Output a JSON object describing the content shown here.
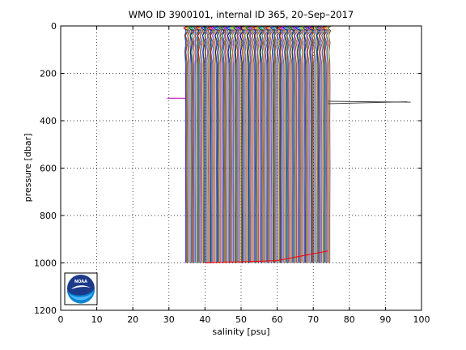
{
  "chart_data": {
    "type": "line",
    "title": "WMO ID 3900101, internal ID 365, 20–Sep–2017",
    "xlabel": "salinity [psu]",
    "ylabel": "pressure [dbar]",
    "xlim": [
      0,
      100
    ],
    "ylim": [
      0,
      1200
    ],
    "y_reversed": true,
    "grid": true,
    "x_ticks": [
      0,
      10,
      20,
      30,
      40,
      50,
      60,
      70,
      80,
      90,
      100
    ],
    "y_ticks": [
      0,
      200,
      400,
      600,
      800,
      1000,
      1200
    ],
    "x_tick_labels": [
      "0",
      "10",
      "20",
      "30",
      "40",
      "50",
      "60",
      "70",
      "80",
      "90",
      "100"
    ],
    "y_tick_labels": [
      "0",
      "200",
      "400",
      "600",
      "800",
      "1000",
      "1200"
    ],
    "profiles": {
      "description_note": "",
      "first_offset_salinity": 34.6,
      "offset_step": 0.25,
      "count": 161,
      "surface_pressure": 0,
      "bottom_pressure": 1000,
      "colors": [
        "#0000ff",
        "#008000",
        "#ff0000",
        "#00bfbf",
        "#bf00bf",
        "#bfbf00",
        "#404040"
      ]
    },
    "annotations": [
      {
        "name": "spike-left",
        "points": [
          [
            29.5,
            305
          ],
          [
            34.8,
            305
          ]
        ],
        "color": "#bf00bf"
      },
      {
        "name": "spike-right-1",
        "points": [
          [
            74,
            318
          ],
          [
            97,
            322
          ]
        ],
        "color": "#404040"
      },
      {
        "name": "spike-right-2",
        "points": [
          [
            74,
            328
          ],
          [
            96,
            320
          ]
        ],
        "color": "#404040"
      },
      {
        "name": "bottom-trend",
        "points": [
          [
            40,
            1000
          ],
          [
            60,
            990
          ],
          [
            74,
            950
          ]
        ],
        "color": "#ff0000"
      }
    ],
    "logo": {
      "text": "NOAA",
      "colors": {
        "navy": "#1d3a8a",
        "blue": "#0a84d0",
        "sky": "#4db8ff"
      }
    }
  }
}
